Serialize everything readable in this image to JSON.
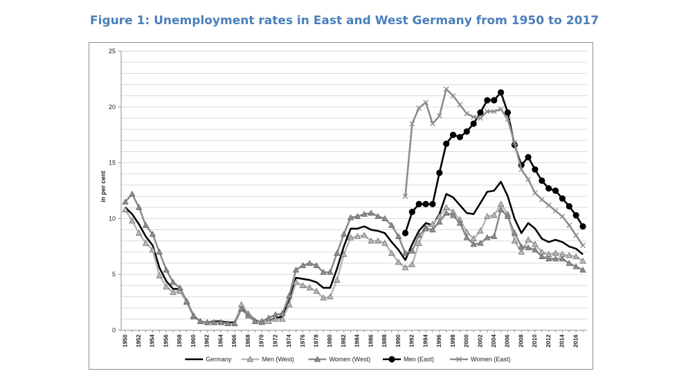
{
  "figure": {
    "title": "Figure 1: Unemployment rates in East and West Germany from 1950 to 2017"
  },
  "chart_data": {
    "type": "line",
    "title": "Figure 1: Unemployment rates in East and West Germany from 1950 to 2017",
    "xlabel": "",
    "ylabel": "in per cent",
    "ylim": [
      0,
      25
    ],
    "yticks": [
      0,
      5,
      10,
      15,
      20,
      25
    ],
    "xlim": [
      1950,
      2017
    ],
    "xticks": [
      1950,
      1952,
      1954,
      1956,
      1958,
      1960,
      1962,
      1964,
      1966,
      1968,
      1970,
      1972,
      1974,
      1976,
      1978,
      1980,
      1982,
      1984,
      1986,
      1988,
      1990,
      1992,
      1994,
      1996,
      1998,
      2000,
      2002,
      2004,
      2006,
      2008,
      2010,
      2012,
      2014,
      2016
    ],
    "grid": "horizontal",
    "legend_position": "bottom",
    "series": [
      {
        "name": "Germany",
        "color": "#000000",
        "marker": "none",
        "x": [
          1950,
          1951,
          1952,
          1953,
          1954,
          1955,
          1956,
          1957,
          1958,
          1959,
          1960,
          1961,
          1962,
          1963,
          1964,
          1965,
          1966,
          1967,
          1968,
          1969,
          1970,
          1971,
          1972,
          1973,
          1974,
          1975,
          1976,
          1977,
          1978,
          1979,
          1980,
          1981,
          1982,
          1983,
          1984,
          1985,
          1986,
          1987,
          1988,
          1989,
          1990,
          1991,
          1992,
          1993,
          1994,
          1995,
          1996,
          1997,
          1998,
          1999,
          2000,
          2001,
          2002,
          2003,
          2004,
          2005,
          2006,
          2007,
          2008,
          2009,
          2010,
          2011,
          2012,
          2013,
          2014,
          2015,
          2016,
          2017
        ],
        "values": [
          11.0,
          10.4,
          9.5,
          8.4,
          7.6,
          5.6,
          4.4,
          3.7,
          3.7,
          2.6,
          1.3,
          0.8,
          0.7,
          0.8,
          0.8,
          0.7,
          0.7,
          2.1,
          1.5,
          0.9,
          0.7,
          0.8,
          1.1,
          1.2,
          2.6,
          4.7,
          4.6,
          4.5,
          4.3,
          3.8,
          3.8,
          5.5,
          7.5,
          9.1,
          9.1,
          9.3,
          9.0,
          8.9,
          8.7,
          7.9,
          7.2,
          6.3,
          7.7,
          8.9,
          9.6,
          9.4,
          10.4,
          12.2,
          11.9,
          11.2,
          10.5,
          10.4,
          11.4,
          12.4,
          12.5,
          13.3,
          12.0,
          10.0,
          8.7,
          9.6,
          9.1,
          8.2,
          7.9,
          8.1,
          7.9,
          7.5,
          7.3,
          6.8
        ]
      },
      {
        "name": "Men (West)",
        "color": "#b8b8b8",
        "marker": "triangle",
        "x": [
          1950,
          1951,
          1952,
          1953,
          1954,
          1955,
          1956,
          1957,
          1958,
          1959,
          1960,
          1961,
          1962,
          1963,
          1964,
          1965,
          1966,
          1967,
          1968,
          1969,
          1970,
          1971,
          1972,
          1973,
          1974,
          1975,
          1976,
          1977,
          1978,
          1979,
          1980,
          1981,
          1982,
          1983,
          1984,
          1985,
          1986,
          1987,
          1988,
          1989,
          1990,
          1991,
          1992,
          1993,
          1994,
          1995,
          1996,
          1997,
          1998,
          1999,
          2000,
          2001,
          2002,
          2003,
          2004,
          2005,
          2006,
          2007,
          2008,
          2009,
          2010,
          2011,
          2012,
          2013,
          2014,
          2015,
          2016,
          2017
        ],
        "values": [
          10.8,
          9.8,
          8.7,
          7.8,
          7.2,
          4.9,
          3.9,
          3.4,
          3.5,
          2.5,
          1.2,
          0.8,
          0.7,
          0.7,
          0.7,
          0.6,
          0.6,
          2.3,
          1.5,
          0.8,
          0.7,
          0.8,
          1.0,
          1.0,
          2.3,
          4.3,
          4.0,
          3.8,
          3.5,
          2.9,
          3.0,
          4.5,
          6.8,
          8.3,
          8.4,
          8.5,
          8.0,
          8.0,
          7.8,
          6.9,
          6.1,
          5.6,
          5.9,
          7.8,
          9.2,
          9.5,
          10.2,
          11.0,
          10.6,
          9.9,
          8.8,
          8.2,
          8.9,
          10.2,
          10.3,
          11.3,
          10.4,
          8.0,
          7.0,
          8.1,
          7.7,
          7.0,
          6.8,
          6.9,
          6.8,
          6.7,
          6.6,
          6.2
        ]
      },
      {
        "name": "Women (West)",
        "color": "#8c8c8c",
        "marker": "triangle",
        "x": [
          1950,
          1951,
          1952,
          1953,
          1954,
          1955,
          1956,
          1957,
          1958,
          1959,
          1960,
          1961,
          1962,
          1963,
          1964,
          1965,
          1966,
          1967,
          1968,
          1969,
          1970,
          1971,
          1972,
          1973,
          1974,
          1975,
          1976,
          1977,
          1978,
          1979,
          1980,
          1981,
          1982,
          1983,
          1984,
          1985,
          1986,
          1987,
          1988,
          1989,
          1990,
          1991,
          1992,
          1993,
          1994,
          1995,
          1996,
          1997,
          1998,
          1999,
          2000,
          2001,
          2002,
          2003,
          2004,
          2005,
          2006,
          2007,
          2008,
          2009,
          2010,
          2011,
          2012,
          2013,
          2014,
          2015,
          2016,
          2017
        ],
        "values": [
          11.5,
          12.2,
          11.0,
          9.4,
          8.6,
          7.0,
          5.4,
          4.3,
          3.8,
          2.6,
          1.3,
          0.8,
          0.7,
          0.7,
          0.7,
          0.6,
          0.6,
          1.9,
          1.3,
          0.8,
          0.8,
          1.1,
          1.4,
          1.5,
          3.1,
          5.4,
          5.8,
          6.0,
          5.8,
          5.2,
          5.2,
          6.9,
          8.6,
          10.1,
          10.2,
          10.4,
          10.5,
          10.2,
          10.0,
          9.4,
          8.4,
          6.9,
          7.1,
          8.5,
          9.1,
          9.0,
          9.7,
          10.5,
          10.3,
          9.6,
          8.3,
          7.7,
          7.8,
          8.3,
          8.4,
          10.8,
          10.2,
          8.7,
          7.5,
          7.4,
          7.2,
          6.6,
          6.4,
          6.4,
          6.4,
          6.0,
          5.7,
          5.4
        ]
      },
      {
        "name": "Men (East)",
        "color": "#000000",
        "marker": "circle",
        "x": [
          1991,
          1992,
          1993,
          1994,
          1995,
          1996,
          1997,
          1998,
          1999,
          2000,
          2001,
          2002,
          2003,
          2004,
          2005,
          2006,
          2007,
          2008,
          2009,
          2010,
          2011,
          2012,
          2013,
          2014,
          2015,
          2016,
          2017
        ],
        "values": [
          8.7,
          10.6,
          11.3,
          11.3,
          11.3,
          14.1,
          16.7,
          17.5,
          17.3,
          17.8,
          18.5,
          19.5,
          20.6,
          20.6,
          21.3,
          19.5,
          16.6,
          14.8,
          15.5,
          14.4,
          13.4,
          12.7,
          12.5,
          11.8,
          11.1,
          10.3,
          9.3
        ]
      },
      {
        "name": "Women (East)",
        "color": "#8c8c8c",
        "marker": "x",
        "x": [
          1991,
          1992,
          1993,
          1994,
          1995,
          1996,
          1997,
          1998,
          1999,
          2000,
          2001,
          2002,
          2003,
          2004,
          2005,
          2006,
          2007,
          2008,
          2009,
          2010,
          2011,
          2012,
          2013,
          2014,
          2015,
          2016,
          2017
        ],
        "values": [
          12.0,
          18.5,
          19.9,
          20.4,
          18.5,
          19.2,
          21.6,
          21.0,
          20.2,
          19.4,
          19.1,
          19.0,
          19.6,
          19.6,
          19.8,
          18.9,
          16.8,
          14.4,
          13.5,
          12.3,
          11.7,
          11.2,
          10.7,
          10.2,
          9.4,
          8.5,
          7.6
        ]
      }
    ]
  }
}
